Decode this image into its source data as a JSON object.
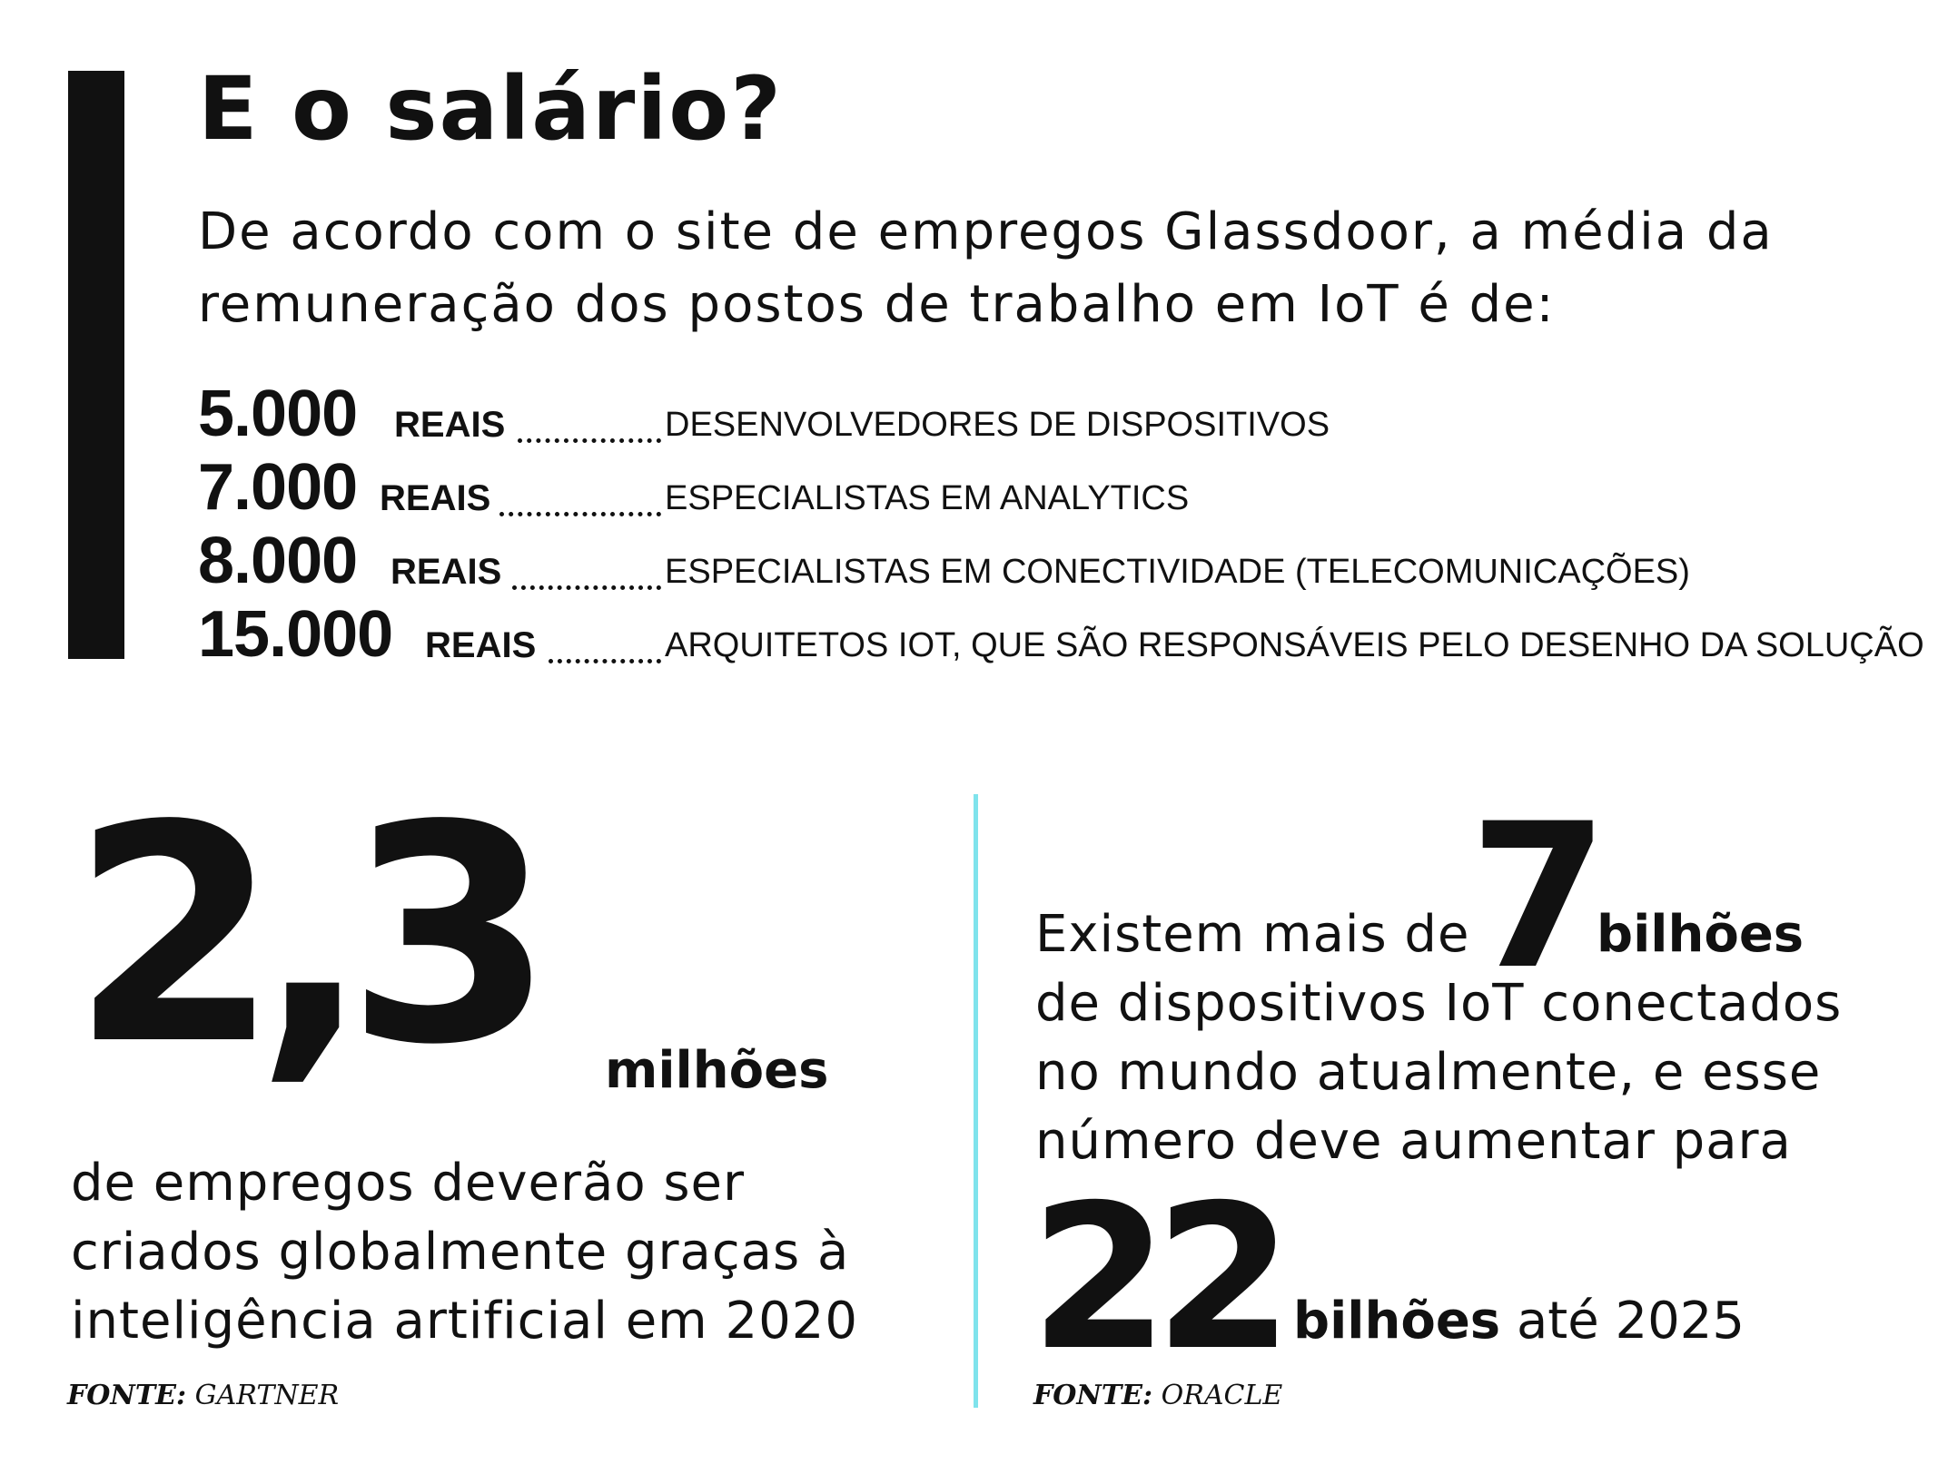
{
  "title": "E o salário?",
  "intro": {
    "line1": "De acordo com o site de empregos Glassdoor, a média da",
    "line2": "remuneração dos postos de trabalho em IoT é de:"
  },
  "salaries": [
    {
      "amount": "5.000",
      "unit": "REAIS",
      "role": "DESENVOLVEDORES DE DISPOSITIVOS"
    },
    {
      "amount": "7.000",
      "unit": "REAIS",
      "role": "ESPECIALISTAS EM ANALYTICS"
    },
    {
      "amount": "8.000",
      "unit": "REAIS",
      "role": "ESPECIALISTAS EM CONECTIVIDADE (TELECOMUNICAÇÕES)"
    },
    {
      "amount": "15.000",
      "unit": "REAIS",
      "role": "ARQUITETOS IOT, QUE SÃO RESPONSÁVEIS PELO DESENHO DA SOLUÇÃO"
    }
  ],
  "left_stat": {
    "number": "2,3",
    "unit": "milhões",
    "line1": "de empregos deverão ser",
    "line2": "criados globalmente graças à",
    "line3": "inteligência artificial em 2020",
    "source_label": "FONTE:",
    "source_name": "GARTNER"
  },
  "right_stat": {
    "line1": "Existem mais de",
    "number1": "7",
    "unit1": "bilhões",
    "line2": "de dispositivos IoT conectados",
    "line3": "no mundo atualmente, e esse",
    "line4": "número deve aumentar para",
    "number2": "22",
    "unit2": "bilhões",
    "tail": " até 2025",
    "source_label": "FONTE:",
    "source_name": "ORACLE"
  },
  "colors": {
    "text": "#111111",
    "divider": "#7fe3ec",
    "background": "#ffffff"
  }
}
